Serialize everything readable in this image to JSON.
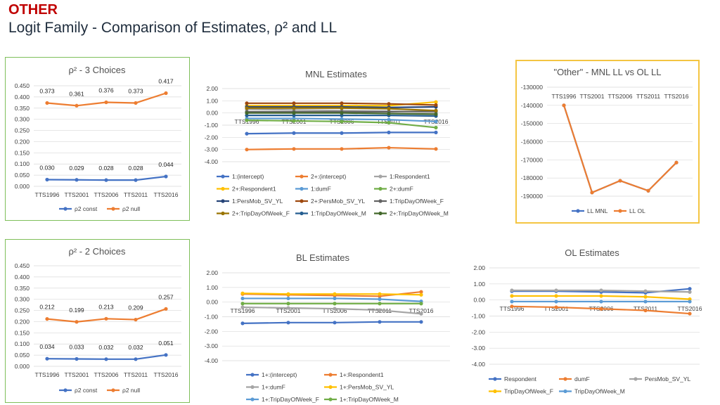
{
  "slide": {
    "category": "OTHER",
    "title": "Logit Family - Comparison of Estimates, ρ² and LL"
  },
  "colors": {
    "blue": "#4472c4",
    "orange": "#ed7d31",
    "gray": "#a5a5a5",
    "yellow": "#ffc000",
    "lightblue": "#5b9bd5",
    "green": "#70ad47",
    "navy": "#264478",
    "brown": "#9e480e",
    "darkgray": "#636363",
    "olive": "#997300",
    "darkblue": "#255e91",
    "darkgreen": "#43682b",
    "panel_green": "#7fbf5a",
    "panel_yellow": "#f4c542",
    "title_red": "#c00000"
  },
  "chart_data": [
    {
      "id": "rho3",
      "type": "line",
      "title": "ρ² - 3 Choices",
      "categories": [
        "TTS1996",
        "TTS2001",
        "TTS2006",
        "TTS2011",
        "TTS2016"
      ],
      "ylim": [
        0,
        0.45
      ],
      "yticks": [
        "0.000",
        "0.050",
        "0.100",
        "0.150",
        "0.200",
        "0.250",
        "0.300",
        "0.350",
        "0.400",
        "0.450"
      ],
      "series": [
        {
          "name": "ρ2 const",
          "color": "#4472c4",
          "values": [
            0.03,
            0.029,
            0.028,
            0.028,
            0.044
          ],
          "labels": [
            "0.030",
            "0.029",
            "0.028",
            "0.028",
            "0.044"
          ]
        },
        {
          "name": "ρ2 null",
          "color": "#ed7d31",
          "values": [
            0.373,
            0.361,
            0.376,
            0.373,
            0.417
          ],
          "labels": [
            "0.373",
            "0.361",
            "0.376",
            "0.373",
            "0.417"
          ]
        }
      ]
    },
    {
      "id": "mnl",
      "type": "line",
      "title": "MNL Estimates",
      "categories": [
        "TTS1996",
        "TTS2001",
        "TTS2006",
        "TTS2011",
        "TTS2016"
      ],
      "ylim": [
        -4,
        2
      ],
      "yticks": [
        "-4.00",
        "-3.00",
        "-2.00",
        "-1.00",
        "0.00",
        "1.00",
        "2.00"
      ],
      "series": [
        {
          "name": "1:(intercept)",
          "color": "#4472c4",
          "values": [
            -1.7,
            -1.65,
            -1.65,
            -1.6,
            -1.6
          ]
        },
        {
          "name": "2+:(intercept)",
          "color": "#ed7d31",
          "values": [
            -3.0,
            -2.95,
            -2.95,
            -2.85,
            -2.95
          ]
        },
        {
          "name": "1:Respondent1",
          "color": "#a5a5a5",
          "values": [
            0.3,
            0.25,
            0.2,
            0.15,
            0.05
          ]
        },
        {
          "name": "2+:Respondent1",
          "color": "#ffc000",
          "values": [
            0.6,
            0.6,
            0.6,
            0.6,
            0.9
          ]
        },
        {
          "name": "1:dumF",
          "color": "#5b9bd5",
          "values": [
            -0.45,
            -0.45,
            -0.5,
            -0.55,
            -0.7
          ]
        },
        {
          "name": "2+:dumF",
          "color": "#70ad47",
          "values": [
            -0.6,
            -0.65,
            -0.7,
            -0.8,
            -1.2
          ]
        },
        {
          "name": "1:PersMob_SV_YL",
          "color": "#264478",
          "values": [
            0.5,
            0.5,
            0.5,
            0.45,
            0.5
          ]
        },
        {
          "name": "2+:PersMob_SV_YL",
          "color": "#9e480e",
          "values": [
            0.8,
            0.8,
            0.8,
            0.75,
            0.65
          ]
        },
        {
          "name": "1:TripDayOfWeek_F",
          "color": "#636363",
          "values": [
            0.1,
            0.1,
            0.1,
            0.1,
            0.15
          ]
        },
        {
          "name": "2+:TripDayOfWeek_F",
          "color": "#997300",
          "values": [
            0.4,
            0.4,
            0.4,
            0.35,
            0.2
          ]
        },
        {
          "name": "1:TripDayOfWeek_M",
          "color": "#255e91",
          "values": [
            -0.2,
            -0.2,
            -0.2,
            -0.2,
            -0.25
          ]
        },
        {
          "name": "2+:TripDayOfWeek_M",
          "color": "#43682b",
          "values": [
            0.0,
            0.0,
            0.0,
            -0.05,
            -0.1
          ]
        }
      ]
    },
    {
      "id": "llcmp",
      "type": "line",
      "title": "\"Other\" - MNL LL vs OL LL",
      "categories": [
        "TTS1996",
        "TTS2001",
        "TTS2006",
        "TTS2011",
        "TTS2016"
      ],
      "ylim": [
        -190000,
        -130000
      ],
      "yticks": [
        "-190000",
        "-180000",
        "-170000",
        "-160000",
        "-150000",
        "-140000",
        "-130000"
      ],
      "series": [
        {
          "name": "LL MNL",
          "color": "#4472c4",
          "values": [
            -140000,
            -188000,
            -181500,
            -187000,
            -171500
          ]
        },
        {
          "name": "LL OL",
          "color": "#ed7d31",
          "values": [
            -140000,
            -188000,
            -181500,
            -187000,
            -171500
          ]
        }
      ]
    },
    {
      "id": "rho2",
      "type": "line",
      "title": "ρ² - 2 Choices",
      "categories": [
        "TTS1996",
        "TTS2001",
        "TTS2006",
        "TTS2011",
        "TTS2016"
      ],
      "ylim": [
        0,
        0.45
      ],
      "yticks": [
        "0.000",
        "0.050",
        "0.100",
        "0.150",
        "0.200",
        "0.250",
        "0.300",
        "0.350",
        "0.400",
        "0.450"
      ],
      "series": [
        {
          "name": "ρ2 const",
          "color": "#4472c4",
          "values": [
            0.034,
            0.033,
            0.032,
            0.032,
            0.051
          ],
          "labels": [
            "0.034",
            "0.033",
            "0.032",
            "0.032",
            "0.051"
          ]
        },
        {
          "name": "ρ2 null",
          "color": "#ed7d31",
          "values": [
            0.212,
            0.199,
            0.213,
            0.209,
            0.257
          ],
          "labels": [
            "0.212",
            "0.199",
            "0.213",
            "0.209",
            "0.257"
          ]
        }
      ]
    },
    {
      "id": "bl",
      "type": "line",
      "title": "BL Estimates",
      "categories": [
        "TTS1996",
        "TTS2001",
        "TTS2006",
        "TTS2011",
        "TTS2016"
      ],
      "ylim": [
        -4,
        2
      ],
      "yticks": [
        "-4.00",
        "-3.00",
        "-2.00",
        "-1.00",
        "0.00",
        "1.00",
        "2.00"
      ],
      "series": [
        {
          "name": "1+:(intercept)",
          "color": "#4472c4",
          "values": [
            -1.45,
            -1.4,
            -1.4,
            -1.35,
            -1.35
          ]
        },
        {
          "name": "1+:Respondent1",
          "color": "#ed7d31",
          "values": [
            0.55,
            0.5,
            0.45,
            0.4,
            0.7
          ]
        },
        {
          "name": "1+:dumF",
          "color": "#a5a5a5",
          "values": [
            -0.35,
            -0.4,
            -0.45,
            -0.55,
            -0.8
          ]
        },
        {
          "name": "1+:PersMob_SV_YL",
          "color": "#ffc000",
          "values": [
            0.6,
            0.55,
            0.55,
            0.55,
            0.5
          ]
        },
        {
          "name": "1+:TripDayOfWeek_F",
          "color": "#5b9bd5",
          "values": [
            0.25,
            0.25,
            0.25,
            0.2,
            0.05
          ]
        },
        {
          "name": "1+:TripDayOfWeek_M",
          "color": "#70ad47",
          "values": [
            -0.1,
            -0.1,
            -0.1,
            -0.1,
            -0.1
          ]
        }
      ]
    },
    {
      "id": "ol",
      "type": "line",
      "title": "OL Estimates",
      "categories": [
        "TTS1996",
        "TTS2001",
        "TTS2006",
        "TTS2011",
        "TTS2016"
      ],
      "ylim": [
        -4,
        2
      ],
      "yticks": [
        "-4.00",
        "-3.00",
        "-2.00",
        "-1.00",
        "0.00",
        "1.00",
        "2.00"
      ],
      "series": [
        {
          "name": "Respondent",
          "color": "#4472c4",
          "values": [
            0.55,
            0.55,
            0.5,
            0.45,
            0.7
          ]
        },
        {
          "name": "dumF",
          "color": "#ed7d31",
          "values": [
            -0.4,
            -0.45,
            -0.55,
            -0.65,
            -0.85
          ]
        },
        {
          "name": "PersMob_SV_YL",
          "color": "#a5a5a5",
          "values": [
            0.6,
            0.6,
            0.6,
            0.55,
            0.5
          ]
        },
        {
          "name": "TripDayOfWeek_F",
          "color": "#ffc000",
          "values": [
            0.25,
            0.25,
            0.25,
            0.2,
            0.05
          ]
        },
        {
          "name": "TripDayOfWeek_M",
          "color": "#5b9bd5",
          "values": [
            -0.1,
            -0.1,
            -0.1,
            -0.1,
            -0.1
          ]
        }
      ]
    }
  ]
}
